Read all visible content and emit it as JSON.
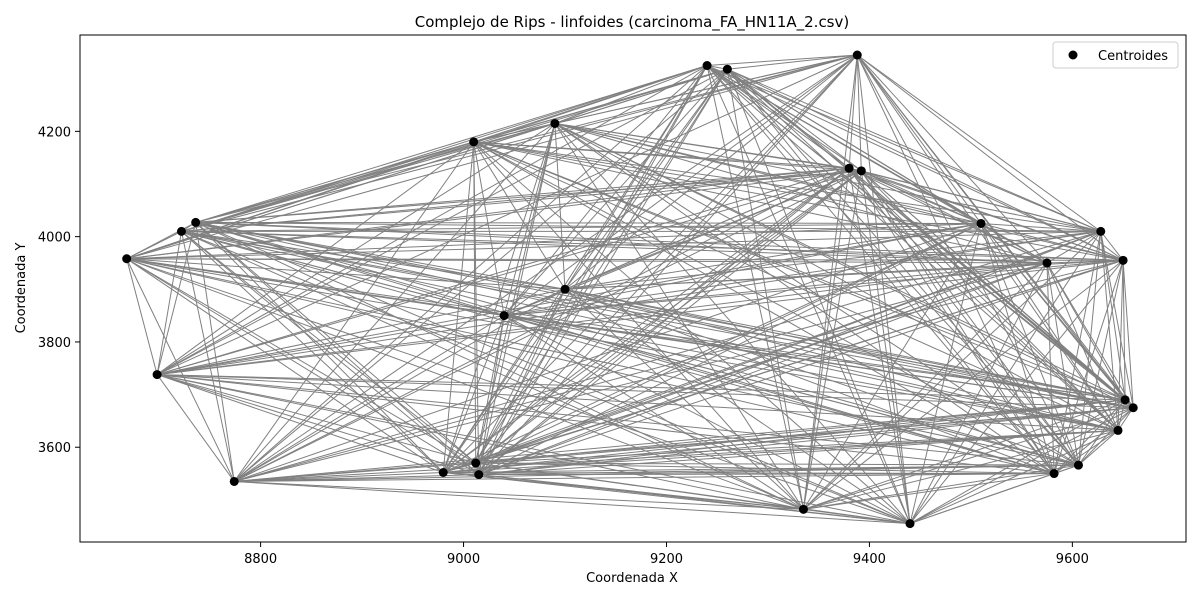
{
  "chart_data": {
    "type": "scatter",
    "title": "Complejo de Rips - linfoides (carcinoma_FA_HN11A_2.csv)",
    "xlabel": "Coordenada X",
    "ylabel": "Coordenada Y",
    "xlim": [
      8622,
      9712
    ],
    "ylim": [
      3420,
      4383
    ],
    "xticks": [
      8800,
      9000,
      9200,
      9400,
      9600
    ],
    "yticks": [
      3600,
      3800,
      4000,
      4200
    ],
    "grid": false,
    "legend": {
      "position": "top-right",
      "entries": [
        "Centroides"
      ]
    },
    "colors": {
      "points": "#000000",
      "edges": "#808080"
    },
    "series": [
      {
        "name": "Centroides",
        "points": [
          [
            8668,
            3958
          ],
          [
            8698,
            3738
          ],
          [
            8722,
            4010
          ],
          [
            8736,
            4027
          ],
          [
            8774,
            3535
          ],
          [
            8980,
            3552
          ],
          [
            9010,
            4180
          ],
          [
            9012,
            3570
          ],
          [
            9015,
            3548
          ],
          [
            9040,
            3850
          ],
          [
            9090,
            4215
          ],
          [
            9100,
            3900
          ],
          [
            9240,
            4325
          ],
          [
            9260,
            4318
          ],
          [
            9335,
            3482
          ],
          [
            9380,
            4130
          ],
          [
            9388,
            4345
          ],
          [
            9392,
            4125
          ],
          [
            9440,
            3455
          ],
          [
            9510,
            4025
          ],
          [
            9575,
            3950
          ],
          [
            9582,
            3550
          ],
          [
            9606,
            3566
          ],
          [
            9628,
            4010
          ],
          [
            9645,
            3632
          ],
          [
            9650,
            3955
          ],
          [
            9652,
            3690
          ],
          [
            9660,
            3675
          ]
        ]
      }
    ]
  }
}
